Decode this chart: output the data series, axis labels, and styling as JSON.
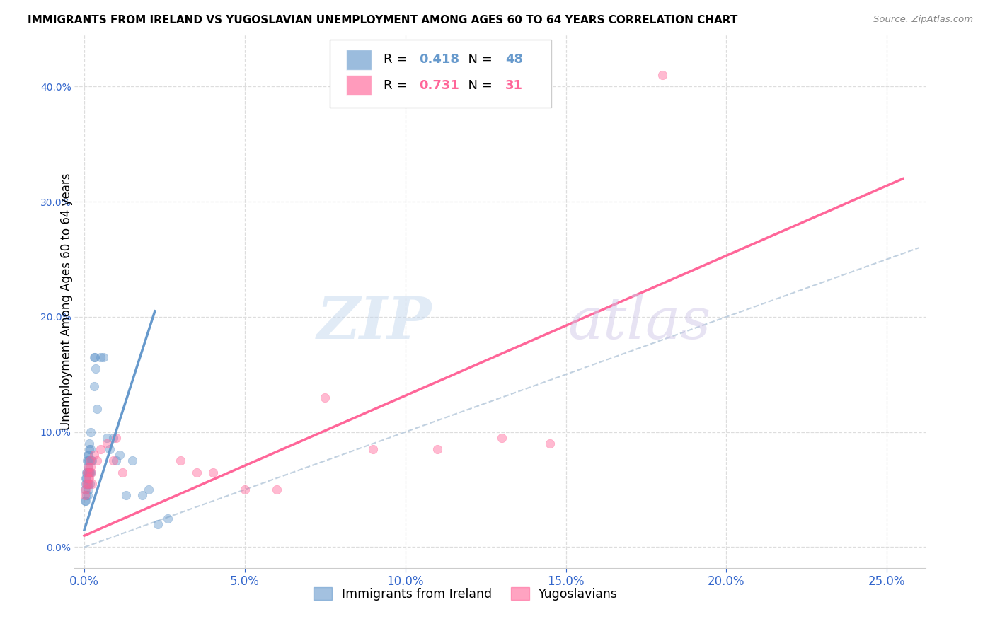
{
  "title": "IMMIGRANTS FROM IRELAND VS YUGOSLAVIAN UNEMPLOYMENT AMONG AGES 60 TO 64 YEARS CORRELATION CHART",
  "source": "Source: ZipAtlas.com",
  "ylabel": "Unemployment Among Ages 60 to 64 years",
  "xlim": [
    -0.003,
    0.262
  ],
  "ylim": [
    -0.018,
    0.445
  ],
  "xlabel_ticks": [
    0.0,
    0.05,
    0.1,
    0.15,
    0.2,
    0.25
  ],
  "ylabel_ticks": [
    0.0,
    0.1,
    0.2,
    0.3,
    0.4
  ],
  "blue_color": "#6699CC",
  "pink_color": "#FF6699",
  "blue_r": "0.418",
  "blue_n": "48",
  "pink_r": "0.731",
  "pink_n": "31",
  "blue_legend_label": "Immigrants from Ireland",
  "pink_legend_label": "Yugoslavians",
  "watermark_zip": "ZIP",
  "watermark_atlas": "atlas",
  "scatter_alpha": 0.45,
  "scatter_size": 80,
  "blue_scatter_x": [
    0.0002,
    0.0003,
    0.0004,
    0.0005,
    0.0005,
    0.0006,
    0.0007,
    0.0007,
    0.0008,
    0.0008,
    0.0009,
    0.001,
    0.001,
    0.001,
    0.0012,
    0.0012,
    0.0013,
    0.0013,
    0.0014,
    0.0015,
    0.0015,
    0.0016,
    0.0016,
    0.0017,
    0.0018,
    0.002,
    0.002,
    0.002,
    0.0022,
    0.0025,
    0.003,
    0.003,
    0.0032,
    0.0035,
    0.004,
    0.005,
    0.006,
    0.007,
    0.008,
    0.009,
    0.01,
    0.011,
    0.013,
    0.015,
    0.018,
    0.02,
    0.023,
    0.026
  ],
  "blue_scatter_y": [
    0.04,
    0.05,
    0.06,
    0.055,
    0.04,
    0.065,
    0.06,
    0.045,
    0.075,
    0.065,
    0.055,
    0.08,
    0.07,
    0.045,
    0.075,
    0.055,
    0.08,
    0.065,
    0.05,
    0.085,
    0.065,
    0.09,
    0.075,
    0.065,
    0.055,
    0.1,
    0.085,
    0.065,
    0.075,
    0.075,
    0.165,
    0.14,
    0.165,
    0.155,
    0.12,
    0.165,
    0.165,
    0.095,
    0.085,
    0.095,
    0.075,
    0.08,
    0.045,
    0.075,
    0.045,
    0.05,
    0.02,
    0.025
  ],
  "pink_scatter_x": [
    0.0002,
    0.0004,
    0.0006,
    0.0008,
    0.001,
    0.0012,
    0.0014,
    0.0015,
    0.0016,
    0.0018,
    0.002,
    0.0022,
    0.0025,
    0.003,
    0.004,
    0.005,
    0.007,
    0.009,
    0.01,
    0.012,
    0.03,
    0.035,
    0.04,
    0.05,
    0.06,
    0.075,
    0.09,
    0.11,
    0.13,
    0.145,
    0.18
  ],
  "pink_scatter_y": [
    0.045,
    0.05,
    0.055,
    0.065,
    0.06,
    0.055,
    0.07,
    0.065,
    0.06,
    0.075,
    0.07,
    0.065,
    0.055,
    0.08,
    0.075,
    0.085,
    0.09,
    0.075,
    0.095,
    0.065,
    0.075,
    0.065,
    0.065,
    0.05,
    0.05,
    0.13,
    0.085,
    0.085,
    0.095,
    0.09,
    0.41
  ],
  "blue_line_x": [
    0.0,
    0.022
  ],
  "blue_line_y": [
    0.015,
    0.205
  ],
  "pink_line_x": [
    0.0,
    0.255
  ],
  "pink_line_y": [
    0.01,
    0.32
  ],
  "diag_line_x": [
    0.0,
    0.26
  ],
  "diag_line_y": [
    0.0,
    0.26
  ],
  "axis_tick_color": "#3366CC",
  "grid_color": "#DDDDDD",
  "background_color": "#FFFFFF"
}
